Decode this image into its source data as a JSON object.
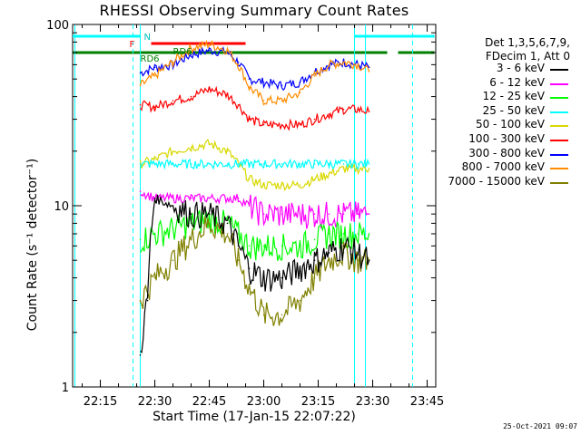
{
  "chart_data": {
    "type": "line",
    "title": "RHESSI Observing Summary Count Rates",
    "xlabel": "Start Time (17-Jan-15 22:07:22)",
    "ylabel": "Count Rate (s⁻¹ detector⁻¹)",
    "yscale": "log",
    "ylim": [
      1,
      100
    ],
    "xlim_minutes_labels": "22:07 to 23:47",
    "x_ticks": [
      "22:15",
      "22:30",
      "22:45",
      "23:00",
      "23:15",
      "23:30",
      "23:45"
    ],
    "y_ticks": [
      "1",
      "10",
      "100"
    ],
    "grid": false,
    "legend_position": "right",
    "legend_header": [
      "Det 1,3,5,6,7,9,",
      "FDecim 1, Att 0"
    ],
    "legend": [
      {
        "label": "3 - 6 keV",
        "color": "#000000"
      },
      {
        "label": "6 - 12 keV",
        "color": "#ff00ff"
      },
      {
        "label": "12 - 25 keV",
        "color": "#00ff00"
      },
      {
        "label": "25 - 50 keV",
        "color": "#00ffff"
      },
      {
        "label": "50 - 100 keV",
        "color": "#d8d800"
      },
      {
        "label": "100 - 300 keV",
        "color": "#ff0000"
      },
      {
        "label": "300 - 800 keV",
        "color": "#0000ff"
      },
      {
        "label": "800 - 7000 keV",
        "color": "#ff8c00"
      },
      {
        "label": "7000 - 15000 keV",
        "color": "#808000"
      }
    ],
    "series": [
      {
        "name": "300 - 800 keV",
        "color": "#0000ff",
        "x": [
          "22:26",
          "22:30",
          "22:35",
          "22:40",
          "22:45",
          "22:50",
          "22:53",
          "22:56",
          "23:00",
          "23:05",
          "23:10",
          "23:14",
          "23:18",
          "23:22",
          "23:26",
          "23:29"
        ],
        "y": [
          54,
          58,
          60,
          68,
          72,
          70,
          62,
          50,
          48,
          46,
          48,
          55,
          60,
          62,
          60,
          58
        ]
      },
      {
        "name": "800 - 7000 keV",
        "color": "#ff8c00",
        "x": [
          "22:26",
          "22:30",
          "22:35",
          "22:40",
          "22:45",
          "22:50",
          "22:53",
          "22:56",
          "23:00",
          "23:05",
          "23:10",
          "23:14",
          "23:18",
          "23:22",
          "23:26",
          "23:29"
        ],
        "y": [
          46,
          52,
          62,
          74,
          78,
          72,
          60,
          45,
          38,
          38,
          42,
          52,
          60,
          62,
          60,
          55
        ]
      },
      {
        "name": "100 - 300 keV",
        "color": "#ff0000",
        "x": [
          "22:26",
          "22:30",
          "22:35",
          "22:40",
          "22:45",
          "22:50",
          "22:53",
          "22:56",
          "23:00",
          "23:05",
          "23:10",
          "23:14",
          "23:18",
          "23:22",
          "23:26",
          "23:29"
        ],
        "y": [
          36,
          35,
          38,
          40,
          44,
          41,
          36,
          30,
          28,
          28,
          28,
          30,
          32,
          34,
          34,
          33
        ]
      },
      {
        "name": "50 - 100 keV",
        "color": "#d8d800",
        "x": [
          "22:26",
          "22:30",
          "22:35",
          "22:40",
          "22:45",
          "22:50",
          "22:53",
          "22:56",
          "23:00",
          "23:05",
          "23:10",
          "23:14",
          "23:18",
          "23:22",
          "23:26",
          "23:29"
        ],
        "y": [
          17,
          18,
          20,
          21,
          22,
          20,
          17,
          14,
          13,
          13,
          13,
          14,
          15,
          16,
          16,
          16
        ]
      },
      {
        "name": "25 - 50 keV",
        "color": "#00ffff",
        "x": [
          "22:26",
          "22:30",
          "22:35",
          "22:40",
          "22:45",
          "22:50",
          "22:53",
          "22:56",
          "23:00",
          "23:05",
          "23:10",
          "23:14",
          "23:18",
          "23:22",
          "23:26",
          "23:29"
        ],
        "y": [
          17,
          17,
          17,
          17,
          17,
          17,
          17,
          17,
          17,
          17,
          17,
          17,
          17,
          17,
          17,
          17
        ]
      },
      {
        "name": "6 - 12 keV",
        "color": "#ff00ff",
        "x": [
          "22:26",
          "22:30",
          "22:35",
          "22:40",
          "22:45",
          "22:50",
          "22:53",
          "22:56",
          "23:00",
          "23:05",
          "23:10",
          "23:14",
          "23:18",
          "23:22",
          "23:26",
          "23:29"
        ],
        "y": [
          12,
          11,
          11,
          11,
          11,
          11,
          11,
          10,
          9,
          9,
          9,
          9,
          9,
          9,
          9,
          9
        ]
      },
      {
        "name": "12 - 25 keV",
        "color": "#00ff00",
        "x": [
          "22:26",
          "22:30",
          "22:35",
          "22:40",
          "22:45",
          "22:50",
          "22:53",
          "22:56",
          "23:00",
          "23:05",
          "23:10",
          "23:14",
          "23:18",
          "23:22",
          "23:26",
          "23:29"
        ],
        "y": [
          6.5,
          7,
          7.5,
          8,
          8.5,
          8,
          7,
          6,
          6,
          6,
          6,
          6.5,
          7,
          7,
          7,
          7
        ]
      },
      {
        "name": "7000 - 15000 keV",
        "color": "#808000",
        "x": [
          "22:26",
          "22:30",
          "22:35",
          "22:40",
          "22:45",
          "22:50",
          "22:53",
          "22:56",
          "23:00",
          "23:05",
          "23:10",
          "23:14",
          "23:18",
          "23:22",
          "23:26",
          "23:29"
        ],
        "y": [
          3,
          4,
          5,
          6.5,
          8,
          7,
          5,
          3.5,
          2.5,
          2.5,
          3,
          4,
          5,
          5.5,
          5,
          5
        ]
      },
      {
        "name": "3 - 6 keV",
        "color": "#000000",
        "x": [
          "22:26",
          "22:28",
          "22:30",
          "22:35",
          "22:40",
          "22:45",
          "22:50",
          "22:53",
          "22:56",
          "23:00",
          "23:05",
          "23:10",
          "23:14",
          "23:18",
          "23:22",
          "23:26",
          "23:29"
        ],
        "y": [
          1.5,
          3,
          11,
          10,
          9,
          9,
          8,
          6,
          4.5,
          4,
          4,
          4.5,
          5,
          5.5,
          6,
          5.5,
          5
        ]
      }
    ],
    "annotations": [
      "N",
      "F",
      "RD6",
      "RD6"
    ]
  },
  "footer": "25-Oct-2021 09:07"
}
